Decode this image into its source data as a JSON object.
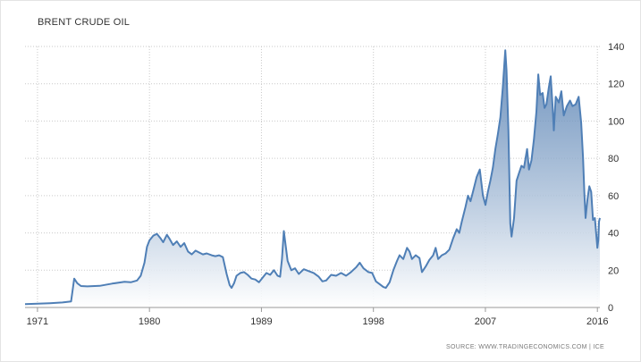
{
  "chart_data": {
    "type": "area",
    "title": "BRENT CRUDE OIL",
    "source": "SOURCE: WWW.TRADINGECONOMICS.COM | ICE",
    "xlabel": "",
    "ylabel": "",
    "xlim": [
      1970.0,
      2016.2
    ],
    "ylim": [
      0,
      140
    ],
    "x_ticks": [
      1971,
      1980,
      1989,
      1998,
      2007,
      2016
    ],
    "y_ticks": [
      0,
      20,
      40,
      60,
      80,
      100,
      120,
      140
    ],
    "grid": true,
    "series": [
      {
        "color": "#4f7fb6",
        "points": [
          [
            1970.0,
            1.8
          ],
          [
            1971.0,
            2.0
          ],
          [
            1972.0,
            2.3
          ],
          [
            1973.0,
            2.7
          ],
          [
            1973.7,
            3.2
          ],
          [
            1973.95,
            15.5
          ],
          [
            1974.2,
            13.0
          ],
          [
            1974.5,
            11.5
          ],
          [
            1975.0,
            11.3
          ],
          [
            1976.0,
            11.6
          ],
          [
            1977.0,
            12.8
          ],
          [
            1978.0,
            13.8
          ],
          [
            1978.5,
            13.5
          ],
          [
            1979.0,
            14.5
          ],
          [
            1979.3,
            17.0
          ],
          [
            1979.6,
            24.0
          ],
          [
            1979.8,
            32.5
          ],
          [
            1980.0,
            36.0
          ],
          [
            1980.3,
            38.5
          ],
          [
            1980.6,
            39.5
          ],
          [
            1980.9,
            37.0
          ],
          [
            1981.1,
            35.0
          ],
          [
            1981.4,
            39.0
          ],
          [
            1981.6,
            37.0
          ],
          [
            1981.9,
            33.5
          ],
          [
            1982.2,
            35.5
          ],
          [
            1982.5,
            32.5
          ],
          [
            1982.8,
            34.5
          ],
          [
            1983.1,
            30.0
          ],
          [
            1983.4,
            28.5
          ],
          [
            1983.7,
            30.5
          ],
          [
            1984.0,
            29.5
          ],
          [
            1984.3,
            28.5
          ],
          [
            1984.6,
            29.0
          ],
          [
            1985.0,
            28.0
          ],
          [
            1985.3,
            27.5
          ],
          [
            1985.6,
            28.0
          ],
          [
            1985.9,
            27.0
          ],
          [
            1986.2,
            18.0
          ],
          [
            1986.45,
            12.0
          ],
          [
            1986.6,
            10.5
          ],
          [
            1986.8,
            13.0
          ],
          [
            1987.0,
            17.0
          ],
          [
            1987.3,
            18.5
          ],
          [
            1987.6,
            19.0
          ],
          [
            1987.9,
            17.5
          ],
          [
            1988.2,
            15.5
          ],
          [
            1988.5,
            15.0
          ],
          [
            1988.8,
            13.5
          ],
          [
            1989.1,
            16.0
          ],
          [
            1989.4,
            18.5
          ],
          [
            1989.7,
            17.5
          ],
          [
            1990.0,
            20.0
          ],
          [
            1990.3,
            17.0
          ],
          [
            1990.5,
            16.5
          ],
          [
            1990.65,
            26.0
          ],
          [
            1990.8,
            41.0
          ],
          [
            1990.95,
            33.0
          ],
          [
            1991.1,
            25.0
          ],
          [
            1991.4,
            20.0
          ],
          [
            1991.7,
            21.0
          ],
          [
            1992.0,
            18.0
          ],
          [
            1992.4,
            20.5
          ],
          [
            1992.8,
            19.5
          ],
          [
            1993.2,
            18.5
          ],
          [
            1993.6,
            16.5
          ],
          [
            1993.9,
            14.0
          ],
          [
            1994.2,
            14.5
          ],
          [
            1994.6,
            17.5
          ],
          [
            1995.0,
            17.0
          ],
          [
            1995.4,
            18.5
          ],
          [
            1995.8,
            17.0
          ],
          [
            1996.2,
            19.0
          ],
          [
            1996.6,
            21.5
          ],
          [
            1996.9,
            24.0
          ],
          [
            1997.2,
            21.0
          ],
          [
            1997.6,
            19.0
          ],
          [
            1997.9,
            18.5
          ],
          [
            1998.2,
            14.0
          ],
          [
            1998.5,
            12.5
          ],
          [
            1998.8,
            11.0
          ],
          [
            1999.0,
            10.5
          ],
          [
            1999.3,
            13.5
          ],
          [
            1999.6,
            20.0
          ],
          [
            1999.9,
            25.0
          ],
          [
            2000.1,
            28.0
          ],
          [
            2000.4,
            26.0
          ],
          [
            2000.7,
            32.0
          ],
          [
            2000.9,
            30.0
          ],
          [
            2001.1,
            26.0
          ],
          [
            2001.4,
            28.0
          ],
          [
            2001.7,
            26.5
          ],
          [
            2001.9,
            19.0
          ],
          [
            2002.2,
            22.0
          ],
          [
            2002.5,
            25.5
          ],
          [
            2002.8,
            28.0
          ],
          [
            2003.0,
            32.0
          ],
          [
            2003.2,
            26.0
          ],
          [
            2003.5,
            28.0
          ],
          [
            2003.8,
            29.0
          ],
          [
            2004.1,
            31.0
          ],
          [
            2004.4,
            37.0
          ],
          [
            2004.7,
            42.0
          ],
          [
            2004.9,
            40.0
          ],
          [
            2005.1,
            46.0
          ],
          [
            2005.4,
            54.0
          ],
          [
            2005.6,
            60.0
          ],
          [
            2005.8,
            57.0
          ],
          [
            2006.0,
            62.0
          ],
          [
            2006.3,
            70.0
          ],
          [
            2006.55,
            74.0
          ],
          [
            2006.8,
            60.0
          ],
          [
            2007.0,
            55.0
          ],
          [
            2007.2,
            62.0
          ],
          [
            2007.4,
            68.0
          ],
          [
            2007.6,
            75.0
          ],
          [
            2007.8,
            85.0
          ],
          [
            2008.0,
            93.0
          ],
          [
            2008.2,
            102.0
          ],
          [
            2008.4,
            118.0
          ],
          [
            2008.6,
            138.0
          ],
          [
            2008.7,
            127.0
          ],
          [
            2008.85,
            95.0
          ],
          [
            2009.0,
            45.0
          ],
          [
            2009.1,
            38.0
          ],
          [
            2009.3,
            48.0
          ],
          [
            2009.5,
            68.0
          ],
          [
            2009.7,
            72.0
          ],
          [
            2009.9,
            76.0
          ],
          [
            2010.1,
            75.0
          ],
          [
            2010.35,
            85.0
          ],
          [
            2010.5,
            74.0
          ],
          [
            2010.7,
            79.0
          ],
          [
            2010.9,
            90.0
          ],
          [
            2011.1,
            105.0
          ],
          [
            2011.25,
            125.0
          ],
          [
            2011.4,
            114.0
          ],
          [
            2011.6,
            115.0
          ],
          [
            2011.75,
            107.0
          ],
          [
            2011.9,
            109.0
          ],
          [
            2012.1,
            118.0
          ],
          [
            2012.25,
            124.0
          ],
          [
            2012.4,
            108.0
          ],
          [
            2012.5,
            95.0
          ],
          [
            2012.65,
            113.0
          ],
          [
            2012.9,
            110.0
          ],
          [
            2013.1,
            116.0
          ],
          [
            2013.3,
            103.0
          ],
          [
            2013.55,
            108.0
          ],
          [
            2013.8,
            111.0
          ],
          [
            2014.0,
            108.0
          ],
          [
            2014.25,
            109.0
          ],
          [
            2014.5,
            113.0
          ],
          [
            2014.7,
            99.0
          ],
          [
            2014.85,
            80.0
          ],
          [
            2014.95,
            62.0
          ],
          [
            2015.05,
            48.0
          ],
          [
            2015.2,
            58.0
          ],
          [
            2015.35,
            65.0
          ],
          [
            2015.5,
            62.0
          ],
          [
            2015.65,
            47.0
          ],
          [
            2015.8,
            48.0
          ],
          [
            2015.9,
            40.0
          ],
          [
            2016.0,
            32.0
          ],
          [
            2016.07,
            36.0
          ],
          [
            2016.13,
            46.0
          ],
          [
            2016.2,
            48.0
          ]
        ]
      }
    ]
  }
}
